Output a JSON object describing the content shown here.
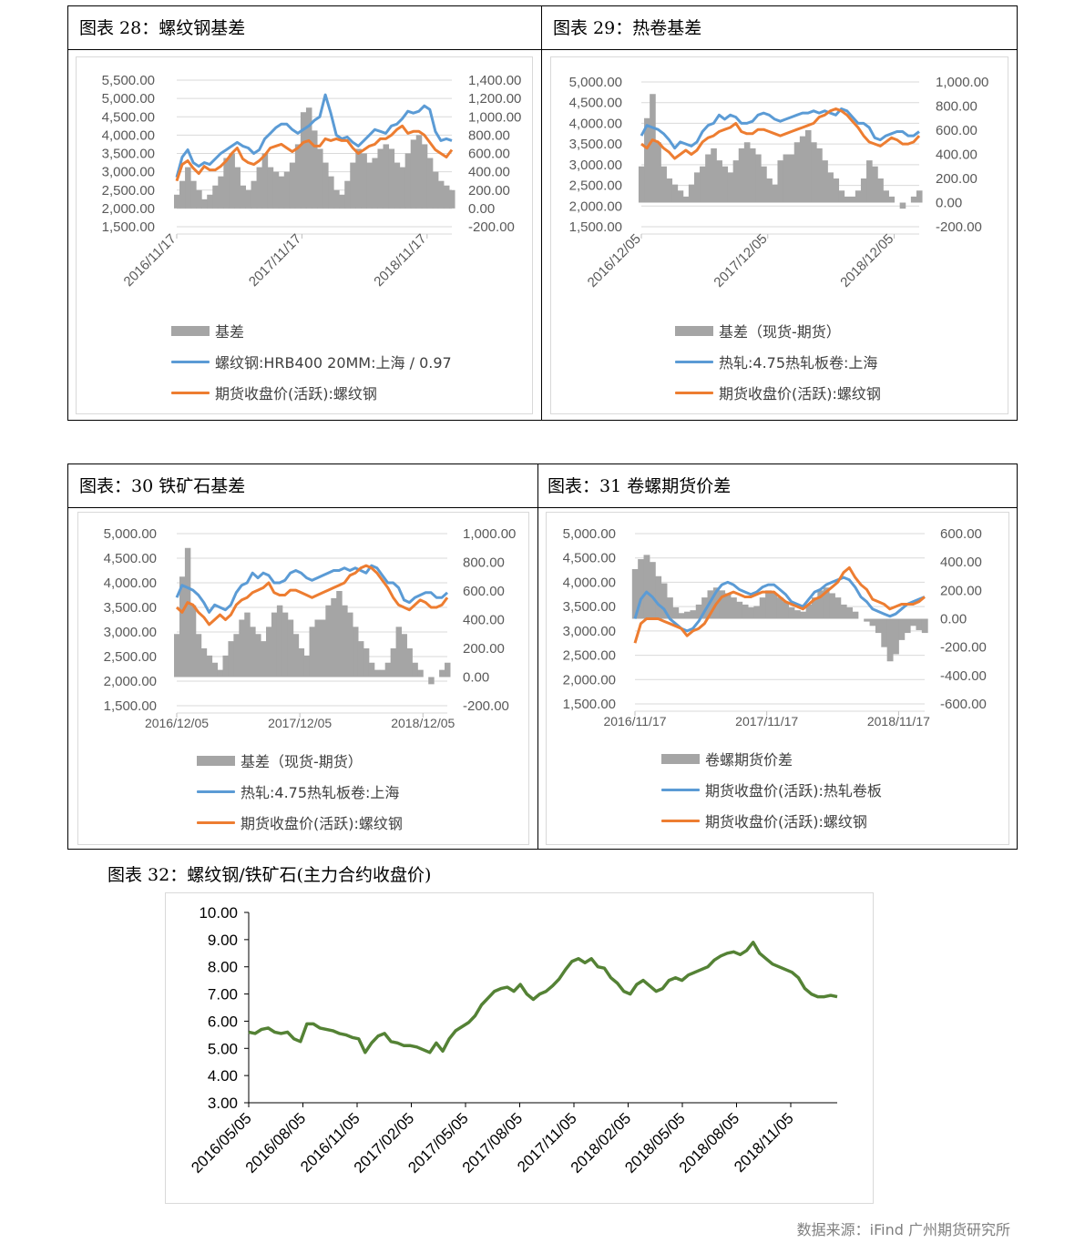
{
  "colors": {
    "blue": "#5b9bd5",
    "orange": "#ed7d31",
    "gray": "#a5a5a5",
    "green": "#548235",
    "axis_text": "#595959",
    "grid": "#d9d9d9"
  },
  "figures": {
    "f28": {
      "title": "图表 28：螺纹钢基差"
    },
    "f29": {
      "title": "图表 29：热卷基差"
    },
    "f30": {
      "title": "图表：30 铁矿石基差"
    },
    "f31": {
      "title": "图表：31 卷螺期货价差"
    },
    "f32": {
      "title": "图表 32：螺纹钢/铁矿石(主力合约收盘价)"
    }
  },
  "source_note": "数据来源：iFind 广州期货研究所",
  "chart_data": [
    {
      "id": "c28",
      "type": "line",
      "bars_series": "基差",
      "left_ticks": [
        "5,500.00",
        "5,000.00",
        "4,500.00",
        "4,000.00",
        "3,500.00",
        "3,000.00",
        "2,500.00",
        "2,000.00",
        "1,500.00"
      ],
      "right_ticks": [
        "1,400.00",
        "1,200.00",
        "1,000.00",
        "800.00",
        "600.00",
        "400.00",
        "200.00",
        "0.00",
        "-200.00"
      ],
      "ylim": [
        1500,
        5500
      ],
      "y2lim": [
        -200,
        1400
      ],
      "x_ticks": [
        "2016/11/17",
        "2017/11/17",
        "2018/11/17"
      ],
      "x_rotated": true,
      "series": [
        {
          "name": "基差",
          "kind": "bar",
          "axis": "right",
          "values": [
            150,
            300,
            450,
            300,
            200,
            100,
            150,
            250,
            350,
            550,
            600,
            450,
            250,
            200,
            300,
            450,
            600,
            450,
            400,
            350,
            400,
            500,
            700,
            1050,
            1100,
            850,
            650,
            500,
            350,
            200,
            150,
            300,
            500,
            650,
            600,
            500,
            550,
            650,
            700,
            650,
            500,
            450,
            600,
            750,
            800,
            700,
            550,
            400,
            300,
            250,
            200
          ]
        },
        {
          "name": "螺纹钢:HRB400 20MM:上海 / 0.97",
          "kind": "line",
          "axis": "left",
          "values": [
            2850,
            3400,
            3600,
            3250,
            3150,
            3250,
            3200,
            3350,
            3500,
            3600,
            3700,
            3800,
            3700,
            3650,
            3500,
            3600,
            3900,
            4050,
            4200,
            4300,
            4300,
            4150,
            4050,
            4150,
            4250,
            4400,
            4500,
            5100,
            4600,
            4000,
            3900,
            3950,
            3800,
            3700,
            3850,
            4000,
            4150,
            4100,
            4050,
            4250,
            4300,
            4450,
            4650,
            4600,
            4650,
            4800,
            4700,
            4100,
            3850,
            3900,
            3850
          ]
        },
        {
          "name": "期货收盘价(活跃):螺纹钢",
          "kind": "line",
          "axis": "left",
          "values": [
            2750,
            3200,
            3300,
            3100,
            2950,
            3150,
            3050,
            3050,
            3150,
            3300,
            3500,
            3650,
            3350,
            3250,
            3200,
            3300,
            3450,
            3650,
            3700,
            3750,
            3650,
            3550,
            3650,
            3800,
            3850,
            3700,
            3700,
            3900,
            3850,
            3900,
            3850,
            3850,
            3650,
            3500,
            3600,
            3700,
            3750,
            3900,
            3900,
            4000,
            4150,
            4250,
            4050,
            4100,
            4100,
            4000,
            3800,
            3600,
            3500,
            3400,
            3600
          ]
        }
      ]
    },
    {
      "id": "c29",
      "type": "line",
      "bars_series": "基差（现货-期货）",
      "left_ticks": [
        "5,000.00",
        "4,500.00",
        "4,000.00",
        "3,500.00",
        "3,000.00",
        "2,500.00",
        "2,000.00",
        "1,500.00"
      ],
      "right_ticks": [
        "1,000.00",
        "800.00",
        "600.00",
        "400.00",
        "200.00",
        "0.00",
        "-200.00"
      ],
      "ylim": [
        1500,
        5000
      ],
      "y2lim": [
        -200,
        1000
      ],
      "x_ticks": [
        "2016/12/05",
        "2017/12/05",
        "2018/12/05"
      ],
      "x_rotated": true,
      "series": [
        {
          "name": "基差（现货-期货）",
          "kind": "bar",
          "axis": "right",
          "values": [
            300,
            700,
            900,
            500,
            300,
            200,
            150,
            100,
            50,
            150,
            250,
            300,
            400,
            450,
            350,
            300,
            250,
            350,
            450,
            500,
            450,
            400,
            300,
            200,
            150,
            350,
            400,
            400,
            500,
            550,
            600,
            500,
            450,
            350,
            250,
            200,
            100,
            50,
            50,
            100,
            200,
            350,
            300,
            200,
            100,
            50,
            0,
            -50,
            0,
            50,
            100
          ]
        },
        {
          "name": "热轧:4.75热轧板卷:上海",
          "kind": "line",
          "axis": "left",
          "values": [
            3700,
            3950,
            3900,
            3850,
            3750,
            3600,
            3400,
            3550,
            3500,
            3450,
            3550,
            3800,
            3950,
            4000,
            4200,
            4100,
            4200,
            4150,
            4000,
            4000,
            4050,
            4200,
            4250,
            4200,
            4100,
            4050,
            4100,
            4150,
            4200,
            4250,
            4250,
            4300,
            4250,
            4300,
            4250,
            4200,
            4350,
            4300,
            4150,
            4000,
            4000,
            3900,
            3650,
            3600,
            3700,
            3750,
            3800,
            3800,
            3700,
            3700,
            3800
          ]
        },
        {
          "name": "期货收盘价(活跃):螺纹钢",
          "kind": "line",
          "axis": "left",
          "values": [
            3500,
            3400,
            3600,
            3550,
            3400,
            3300,
            3150,
            3250,
            3350,
            3250,
            3350,
            3550,
            3650,
            3700,
            3800,
            3850,
            3900,
            4000,
            3800,
            3750,
            3750,
            3850,
            3850,
            3800,
            3750,
            3700,
            3750,
            3800,
            3850,
            3900,
            3950,
            4000,
            4150,
            4200,
            4300,
            4350,
            4300,
            4200,
            4050,
            3900,
            3700,
            3550,
            3500,
            3450,
            3550,
            3650,
            3600,
            3500,
            3500,
            3550,
            3700
          ]
        }
      ]
    },
    {
      "id": "c30",
      "type": "line",
      "bars_series": "基差（现货-期货）",
      "left_ticks": [
        "5,000.00",
        "4,500.00",
        "4,000.00",
        "3,500.00",
        "3,000.00",
        "2,500.00",
        "2,000.00",
        "1,500.00"
      ],
      "right_ticks": [
        "1,000.00",
        "800.00",
        "600.00",
        "400.00",
        "200.00",
        "0.00",
        "-200.00"
      ],
      "ylim": [
        1500,
        5000
      ],
      "y2lim": [
        -200,
        1000
      ],
      "x_ticks": [
        "2016/12/05",
        "2017/12/05",
        "2018/12/05"
      ],
      "x_rotated": false,
      "series": [
        {
          "name": "基差（现货-期货）",
          "kind": "bar",
          "axis": "right",
          "values": [
            300,
            700,
            900,
            500,
            300,
            200,
            150,
            100,
            50,
            150,
            250,
            300,
            400,
            450,
            350,
            300,
            250,
            350,
            450,
            500,
            450,
            400,
            300,
            200,
            150,
            350,
            400,
            400,
            500,
            550,
            600,
            500,
            450,
            350,
            250,
            200,
            100,
            50,
            50,
            100,
            200,
            350,
            300,
            200,
            100,
            50,
            0,
            -50,
            0,
            50,
            100
          ]
        },
        {
          "name": "热轧:4.75热轧板卷:上海",
          "kind": "line",
          "axis": "left",
          "values": [
            3700,
            3950,
            3900,
            3850,
            3750,
            3600,
            3400,
            3550,
            3500,
            3450,
            3550,
            3800,
            3950,
            4000,
            4200,
            4100,
            4200,
            4150,
            4000,
            4000,
            4050,
            4200,
            4250,
            4200,
            4100,
            4050,
            4100,
            4150,
            4200,
            4250,
            4250,
            4300,
            4250,
            4300,
            4250,
            4200,
            4350,
            4300,
            4150,
            4000,
            4000,
            3900,
            3650,
            3600,
            3700,
            3750,
            3800,
            3800,
            3700,
            3700,
            3800
          ]
        },
        {
          "name": "期货收盘价(活跃):螺纹钢",
          "kind": "line",
          "axis": "left",
          "values": [
            3500,
            3400,
            3600,
            3550,
            3400,
            3300,
            3150,
            3250,
            3350,
            3250,
            3350,
            3550,
            3650,
            3700,
            3800,
            3850,
            3900,
            4000,
            3800,
            3750,
            3750,
            3850,
            3850,
            3800,
            3750,
            3700,
            3750,
            3800,
            3850,
            3900,
            3950,
            4000,
            4150,
            4200,
            4300,
            4350,
            4300,
            4200,
            4050,
            3900,
            3700,
            3550,
            3500,
            3450,
            3550,
            3650,
            3600,
            3500,
            3500,
            3550,
            3700
          ]
        }
      ]
    },
    {
      "id": "c31",
      "type": "line",
      "bars_series": "卷螺期货价差",
      "left_ticks": [
        "5,000.00",
        "4,500.00",
        "4,000.00",
        "3,500.00",
        "3,000.00",
        "2,500.00",
        "2,000.00",
        "1,500.00"
      ],
      "right_ticks": [
        "600.00",
        "400.00",
        "200.00",
        "0.00",
        "-200.00",
        "-400.00",
        "-600.00"
      ],
      "ylim": [
        1500,
        5000
      ],
      "y2lim": [
        -600,
        600
      ],
      "x_ticks": [
        "2016/11/17",
        "2017/11/17",
        "2018/11/17"
      ],
      "x_rotated": false,
      "series": [
        {
          "name": "卷螺期货价差",
          "kind": "bar",
          "axis": "right",
          "values": [
            350,
            420,
            450,
            400,
            300,
            250,
            150,
            80,
            40,
            50,
            60,
            100,
            150,
            200,
            220,
            200,
            180,
            150,
            120,
            100,
            80,
            90,
            150,
            200,
            180,
            150,
            120,
            80,
            60,
            50,
            100,
            150,
            200,
            220,
            180,
            150,
            100,
            80,
            50,
            0,
            -20,
            -50,
            -100,
            -200,
            -300,
            -250,
            -150,
            -100,
            -50,
            -80,
            -100
          ]
        },
        {
          "name": "期货收盘价(活跃):热轧卷板",
          "kind": "line",
          "axis": "left",
          "values": [
            3250,
            3650,
            3800,
            3700,
            3550,
            3450,
            3250,
            3150,
            3050,
            3000,
            3050,
            3200,
            3400,
            3600,
            3800,
            3950,
            4000,
            3950,
            3850,
            3800,
            3750,
            3800,
            3900,
            3950,
            3950,
            3850,
            3750,
            3600,
            3550,
            3500,
            3650,
            3800,
            3850,
            3950,
            4000,
            4050,
            4100,
            4050,
            3900,
            3700,
            3600,
            3450,
            3400,
            3350,
            3300,
            3350,
            3450,
            3550,
            3600,
            3650,
            3700
          ]
        },
        {
          "name": "期货收盘价(活跃):螺纹钢",
          "kind": "line",
          "axis": "left",
          "values": [
            2750,
            3150,
            3250,
            3250,
            3250,
            3200,
            3150,
            3100,
            3050,
            2900,
            3000,
            3050,
            3150,
            3350,
            3550,
            3700,
            3750,
            3800,
            3750,
            3700,
            3700,
            3750,
            3800,
            3800,
            3800,
            3700,
            3600,
            3550,
            3500,
            3450,
            3550,
            3650,
            3700,
            3800,
            3900,
            4000,
            4200,
            4300,
            4100,
            3950,
            3850,
            3650,
            3600,
            3550,
            3450,
            3500,
            3550,
            3550,
            3550,
            3600,
            3700
          ]
        }
      ]
    },
    {
      "id": "c32",
      "type": "line",
      "left_ticks": [
        "10.00",
        "9.00",
        "8.00",
        "7.00",
        "6.00",
        "5.00",
        "4.00",
        "3.00"
      ],
      "ylim": [
        3,
        10
      ],
      "x_ticks": [
        "2016/05/05",
        "2016/08/05",
        "2016/11/05",
        "2017/02/05",
        "2017/05/05",
        "2017/08/05",
        "2017/11/05",
        "2018/02/05",
        "2018/05/05",
        "2018/08/05",
        "2018/11/05"
      ],
      "series": [
        {
          "name": "螺纹钢/铁矿石",
          "kind": "line",
          "axis": "left",
          "values": [
            5.6,
            5.55,
            5.7,
            5.75,
            5.6,
            5.55,
            5.6,
            5.35,
            5.25,
            5.9,
            5.9,
            5.75,
            5.7,
            5.65,
            5.55,
            5.5,
            5.4,
            5.35,
            4.85,
            5.2,
            5.45,
            5.55,
            5.25,
            5.2,
            5.1,
            5.1,
            5.05,
            4.95,
            4.85,
            5.2,
            4.9,
            5.35,
            5.65,
            5.8,
            5.95,
            6.2,
            6.6,
            6.85,
            7.1,
            7.2,
            7.25,
            7.1,
            7.35,
            7.0,
            6.8,
            7.0,
            7.1,
            7.3,
            7.55,
            7.9,
            8.2,
            8.3,
            8.15,
            8.3,
            8.0,
            7.95,
            7.6,
            7.4,
            7.1,
            7.0,
            7.35,
            7.5,
            7.3,
            7.1,
            7.2,
            7.5,
            7.6,
            7.5,
            7.7,
            7.8,
            7.9,
            8.0,
            8.25,
            8.4,
            8.5,
            8.55,
            8.45,
            8.6,
            8.9,
            8.5,
            8.3,
            8.1,
            8.0,
            7.9,
            7.8,
            7.6,
            7.2,
            7.0,
            6.9,
            6.9,
            6.95,
            6.9
          ]
        }
      ]
    }
  ]
}
